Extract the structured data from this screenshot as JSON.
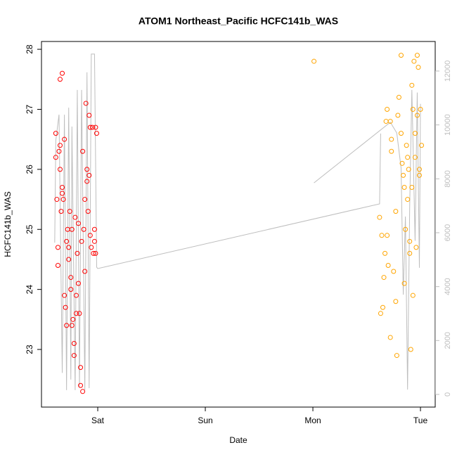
{
  "chart_data": {
    "type": "scatter",
    "title": "ATOM1 Northeast_Pacific HCFC141b_WAS",
    "xlabel": "Date",
    "ylabel": "HCFC141b_WAS",
    "xlim": [
      -0.523,
      3.137
    ],
    "xticks": [
      {
        "value": 0,
        "label": "Sat"
      },
      {
        "value": 1,
        "label": "Sun"
      },
      {
        "value": 2,
        "label": "Mon"
      },
      {
        "value": 3,
        "label": "Tue"
      }
    ],
    "ylim": [
      22.04,
      28.13
    ],
    "yticks": [
      23,
      24,
      25,
      26,
      27,
      28
    ],
    "y2lim": [
      -470,
      13096
    ],
    "y2ticks": [
      0,
      2000,
      4000,
      6000,
      8000,
      10000,
      12000
    ],
    "series": [
      {
        "color": "#ff0000",
        "x": [
          -0.39,
          -0.39,
          -0.38,
          -0.37,
          -0.37,
          -0.35,
          -0.33,
          -0.36,
          -0.35,
          -0.35,
          -0.33,
          -0.34,
          -0.33,
          -0.32,
          -0.31,
          -0.31,
          -0.3,
          -0.29,
          -0.29,
          -0.28,
          -0.27,
          -0.27,
          -0.26,
          -0.25,
          -0.25,
          -0.24,
          -0.24,
          -0.23,
          -0.22,
          -0.22,
          -0.21,
          -0.2,
          -0.2,
          -0.19,
          -0.18,
          -0.18,
          -0.17,
          -0.16,
          -0.16,
          -0.14,
          -0.15,
          -0.14,
          -0.13,
          -0.12,
          -0.12,
          -0.11,
          -0.1,
          -0.1,
          -0.09,
          -0.08,
          -0.08,
          -0.07,
          -0.07,
          -0.06,
          -0.05,
          -0.04,
          -0.03,
          -0.02,
          -0.01,
          -0.02,
          -0.03
        ],
        "values": [
          26.6,
          26.2,
          25.5,
          24.7,
          24.4,
          27.5,
          27.6,
          26.3,
          26.4,
          26.0,
          25.6,
          25.3,
          25.7,
          25.5,
          26.5,
          23.9,
          23.7,
          23.4,
          24.8,
          25.0,
          24.5,
          24.7,
          25.3,
          24.2,
          24.0,
          25.0,
          23.4,
          23.5,
          23.1,
          22.9,
          25.2,
          23.9,
          23.6,
          24.6,
          24.1,
          25.1,
          23.6,
          22.7,
          22.4,
          22.3,
          24.8,
          26.3,
          25.0,
          24.3,
          25.5,
          27.1,
          26.0,
          25.8,
          25.3,
          26.9,
          25.9,
          26.7,
          24.9,
          24.7,
          26.7,
          24.6,
          25.0,
          26.7,
          26.6,
          24.6,
          24.8
        ]
      },
      {
        "color": "#ffa500",
        "x": [
          2.01,
          2.62,
          2.64,
          2.63,
          2.65,
          2.66,
          2.67,
          2.68,
          2.69,
          2.69,
          2.7,
          2.72,
          2.72,
          2.73,
          2.73,
          2.75,
          2.77,
          2.77,
          2.78,
          2.79,
          2.8,
          2.82,
          2.82,
          2.83,
          2.84,
          2.85,
          2.85,
          2.86,
          2.87,
          2.88,
          2.88,
          2.89,
          2.9,
          2.9,
          2.91,
          2.92,
          2.92,
          2.93,
          2.93,
          2.94,
          2.95,
          2.95,
          2.96,
          2.97,
          2.97,
          2.98,
          2.99,
          2.99,
          3.0,
          3.01
        ],
        "values": [
          27.8,
          25.2,
          24.9,
          23.6,
          23.7,
          24.2,
          24.6,
          26.8,
          27.0,
          24.9,
          24.4,
          23.2,
          26.8,
          26.5,
          26.3,
          24.3,
          23.8,
          25.3,
          22.9,
          26.9,
          27.2,
          27.9,
          26.6,
          26.1,
          25.9,
          25.7,
          24.1,
          25.0,
          26.4,
          25.5,
          26.2,
          26.0,
          24.8,
          24.6,
          23.0,
          25.7,
          27.4,
          27.0,
          23.9,
          27.8,
          26.6,
          26.2,
          24.7,
          26.9,
          27.9,
          27.7,
          25.9,
          26.0,
          27.0,
          26.4
        ]
      },
      {
        "type": "line",
        "axis": "y2",
        "color": "#bebebe",
        "x": [
          -0.4,
          -0.39,
          -0.36,
          -0.33,
          -0.31,
          -0.29,
          -0.27,
          -0.25,
          -0.24,
          -0.21,
          -0.19,
          -0.17,
          -0.15,
          -0.12,
          -0.1,
          -0.08,
          -0.06,
          -0.03,
          -0.01,
          0.0,
          2.62,
          2.63,
          null,
          2.01,
          2.72,
          2.78,
          2.82,
          2.84,
          2.86,
          2.88,
          2.9,
          2.92,
          2.95,
          2.97,
          2.99,
          3.0
        ],
        "values": [
          5630,
          9420,
          10380,
          800,
          10380,
          160,
          10640,
          550,
          9940,
          160,
          11300,
          290,
          11300,
          160,
          11950,
          230,
          12630,
          12630,
          4720,
          4670,
          7070,
          9680,
          null,
          7850,
          10100,
          9700,
          8400,
          3700,
          6600,
          180,
          7000,
          11300,
          5700,
          11200,
          4700,
          10780
        ]
      }
    ]
  }
}
